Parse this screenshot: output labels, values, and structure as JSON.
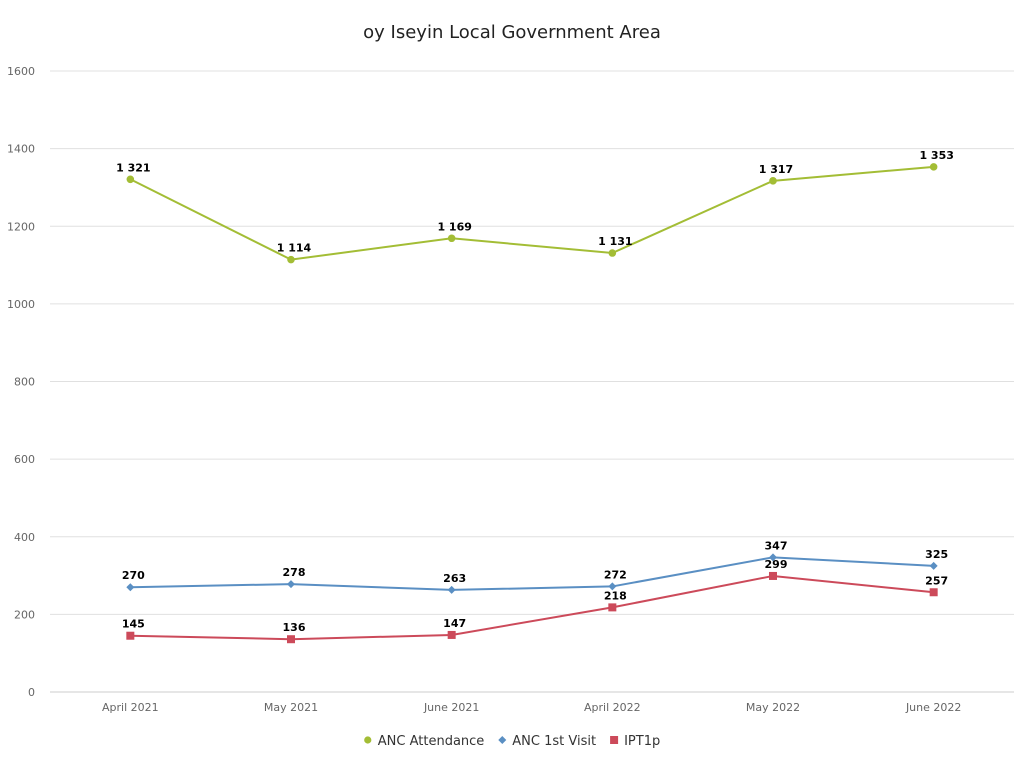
{
  "chart_data": {
    "type": "line",
    "title": "oy Iseyin Local Government Area",
    "categories": [
      "April 2021",
      "May 2021",
      "June 2021",
      "April 2022",
      "May 2022",
      "June 2022"
    ],
    "ylim": [
      0,
      1600
    ],
    "yticks": [
      0,
      200,
      400,
      600,
      800,
      1000,
      1200,
      1400,
      1600
    ],
    "grid": true,
    "legend_position": "bottom",
    "series": [
      {
        "name": "ANC Attendance",
        "color": "#a3bd35",
        "marker": "circle",
        "values": [
          1321,
          1114,
          1169,
          1131,
          1317,
          1353
        ],
        "labels": [
          "1 321",
          "1 114",
          "1 169",
          "1 131",
          "1 317",
          "1 353"
        ]
      },
      {
        "name": "ANC 1st Visit",
        "color": "#5a8fc3",
        "marker": "diamond",
        "values": [
          270,
          278,
          263,
          272,
          347,
          325
        ],
        "labels": [
          "270",
          "278",
          "263",
          "272",
          "347",
          "325"
        ]
      },
      {
        "name": "IPT1p",
        "color": "#cc4a5a",
        "marker": "square",
        "values": [
          145,
          136,
          147,
          218,
          299,
          257
        ],
        "labels": [
          "145",
          "136",
          "147",
          "218",
          "299",
          "257"
        ]
      }
    ]
  }
}
